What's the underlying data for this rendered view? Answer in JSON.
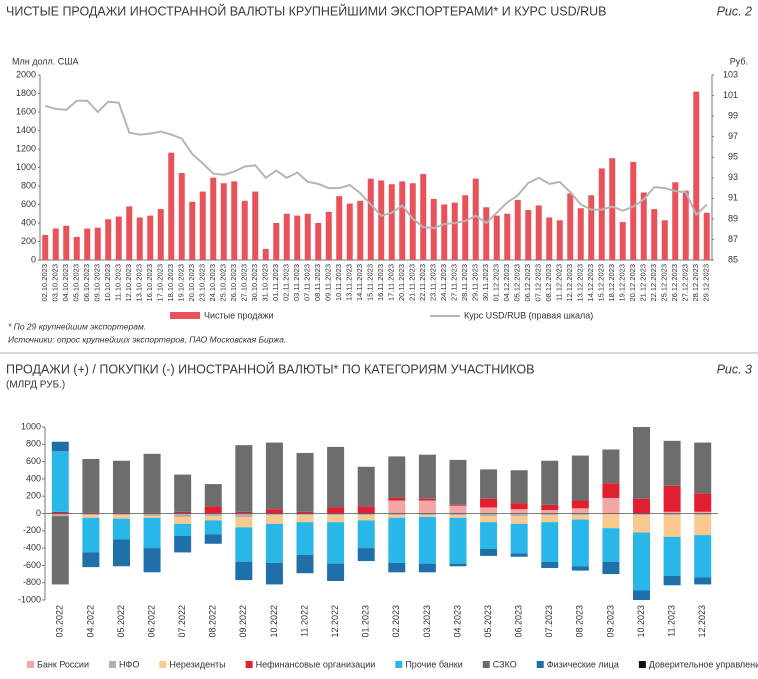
{
  "chart_data": [
    {
      "type": "bar_line",
      "title": "ЧИСТЫЕ ПРОДАЖИ ИНОСТРАННОЙ ВАЛЮТЫ КРУПНЕЙШИМИ ЭКСПОРТЕРАМИ* И КУРС USD/RUB",
      "figure_label": "Рис. 2",
      "y_label": "Млн долл. США",
      "y2_label": "Руб.",
      "notes": [
        "* По 29 крупнейшим экспортерам.",
        "Источники: опрос крупнейших экспортеров, ПАО Московская Биржа."
      ],
      "categories": [
        "02.10.2023",
        "03.10.2023",
        "04.10.2023",
        "05.10.2023",
        "06.10.2023",
        "09.10.2023",
        "10.10.2023",
        "11.10.2023",
        "12.10.2023",
        "13.10.2023",
        "16.10.2023",
        "17.10.2023",
        "18.10.2023",
        "19.10.2023",
        "20.10.2023",
        "23.10.2023",
        "24.10.2023",
        "25.10.2023",
        "26.10.2023",
        "27.10.2023",
        "30.10.2023",
        "31.10.2023",
        "01.11.2023",
        "02.11.2023",
        "03.11.2023",
        "07.11.2023",
        "08.11.2023",
        "09.11.2023",
        "10.11.2023",
        "13.11.2023",
        "14.11.2023",
        "15.11.2023",
        "16.11.2023",
        "17.11.2023",
        "20.11.2023",
        "21.11.2023",
        "22.11.2023",
        "23.11.2023",
        "24.11.2023",
        "27.11.2023",
        "28.11.2023",
        "29.11.2023",
        "30.11.2023",
        "01.12.2023",
        "04.12.2023",
        "05.12.2023",
        "06.12.2023",
        "07.12.2023",
        "08.12.2023",
        "11.12.2023",
        "12.12.2023",
        "13.12.2023",
        "14.12.2023",
        "15.12.2023",
        "18.12.2023",
        "19.12.2023",
        "20.12.2023",
        "21.12.2023",
        "22.12.2023",
        "25.12.2023",
        "26.12.2023",
        "27.12.2023",
        "28.12.2023",
        "29.12.2023"
      ],
      "series": [
        {
          "name": "Чистые продажи",
          "type": "bar",
          "color": "#e8535b",
          "values": [
            270,
            340,
            370,
            250,
            340,
            350,
            440,
            470,
            580,
            460,
            480,
            550,
            1160,
            940,
            630,
            740,
            890,
            830,
            850,
            640,
            740,
            120,
            400,
            500,
            480,
            500,
            400,
            520,
            690,
            610,
            640,
            880,
            860,
            820,
            850,
            830,
            930,
            660,
            600,
            620,
            700,
            880,
            570,
            480,
            500,
            650,
            540,
            590,
            460,
            430,
            720,
            560,
            700,
            990,
            1100,
            410,
            1060,
            730,
            550,
            430,
            840,
            750,
            1820,
            510
          ]
        },
        {
          "name": "Курс USD/RUB (правая шкала)",
          "type": "line",
          "axis": "y2",
          "color": "#b5b5b5",
          "values": [
            100.0,
            99.7,
            99.6,
            100.5,
            100.5,
            99.4,
            100.4,
            100.3,
            97.4,
            97.2,
            97.3,
            97.5,
            97.2,
            96.8,
            95.3,
            94.4,
            93.4,
            93.3,
            93.6,
            94.1,
            94.2,
            93.0,
            93.7,
            93.0,
            93.5,
            92.6,
            92.4,
            92.0,
            92.0,
            92.3,
            91.5,
            90.4,
            89.3,
            89.6,
            90.3,
            89.0,
            88.2,
            88.1,
            88.5,
            88.6,
            88.8,
            89.3,
            88.6,
            89.6,
            90.6,
            91.3,
            92.5,
            93.0,
            92.4,
            92.6,
            91.6,
            90.4,
            89.9,
            89.9,
            90.2,
            89.8,
            90.2,
            90.9,
            92.1,
            92.0,
            91.7,
            91.6,
            89.4,
            90.4
          ]
        }
      ],
      "ylim": [
        0,
        2000
      ],
      "yticks": [
        0,
        200,
        400,
        600,
        800,
        1000,
        1200,
        1400,
        1600,
        1800,
        2000
      ],
      "y2lim": [
        85,
        103
      ],
      "y2ticks": [
        85,
        87,
        89,
        91,
        93,
        95,
        97,
        99,
        101,
        103
      ]
    },
    {
      "type": "stacked_bar",
      "title": "ПРОДАЖИ (+) / ПОКУПКИ (-) ИНОСТРАННОЙ ВАЛЮТЫ* ПО КАТЕГОРИЯМ УЧАСТНИКОВ",
      "subtitle": "(МЛРД РУБ.)",
      "figure_label": "Рис. 3",
      "categories": [
        "03.2022",
        "04.2022",
        "05.2022",
        "06.2022",
        "07.2022",
        "08.2022",
        "09.2022",
        "10.2022",
        "11.2022",
        "12.2022",
        "01.2023",
        "02.2023",
        "03.2023",
        "04.2023",
        "05.2023",
        "06.2023",
        "07.2023",
        "08.2023",
        "09.2023",
        "10.2023",
        "11.2023",
        "12.2023"
      ],
      "series": [
        {
          "name": "Банк России",
          "color": "#f4a6a6",
          "values": [
            0,
            0,
            0,
            0,
            0,
            0,
            0,
            0,
            0,
            0,
            0,
            150,
            150,
            90,
            70,
            50,
            40,
            60,
            180,
            0,
            20,
            20
          ]
        },
        {
          "name": "НФО",
          "color": "#b0b0b0",
          "values": [
            -30,
            -20,
            -20,
            -30,
            -40,
            -30,
            -40,
            -20,
            -20,
            -20,
            -20,
            -20,
            -20,
            -20,
            -30,
            -30,
            -20,
            -20,
            -10,
            -20,
            -20,
            -20
          ]
        },
        {
          "name": "Нерезиденты",
          "color": "#f9c98f",
          "values": [
            0,
            -30,
            -40,
            -20,
            -80,
            -50,
            -120,
            -100,
            -80,
            -80,
            -60,
            -30,
            -20,
            -30,
            -70,
            -90,
            -80,
            -50,
            -160,
            -200,
            -250,
            -230
          ]
        },
        {
          "name": "Нефинансовые организации",
          "color": "#e31e2f",
          "values": [
            20,
            10,
            10,
            10,
            20,
            80,
            20,
            50,
            20,
            70,
            80,
            30,
            20,
            10,
            100,
            70,
            60,
            90,
            170,
            170,
            300,
            210
          ]
        },
        {
          "name": "Прочие банки",
          "color": "#29b6e8",
          "values": [
            700,
            -400,
            -240,
            -350,
            -140,
            -160,
            -400,
            -450,
            -380,
            -480,
            -320,
            -520,
            -540,
            -530,
            -310,
            -340,
            -460,
            -540,
            -390,
            -670,
            -450,
            -490
          ]
        },
        {
          "name": "СЗКО",
          "color": "#6d6d6d",
          "values": [
            -790,
            620,
            600,
            680,
            430,
            260,
            770,
            770,
            680,
            700,
            460,
            480,
            510,
            520,
            340,
            380,
            510,
            520,
            390,
            830,
            520,
            590
          ]
        },
        {
          "name": "Физические лица",
          "color": "#1f6fa8",
          "values": [
            110,
            -170,
            -310,
            -280,
            -190,
            -110,
            -210,
            -250,
            -210,
            -200,
            -150,
            -110,
            -100,
            -30,
            -80,
            -40,
            -70,
            -50,
            -140,
            -110,
            -110,
            -80
          ]
        },
        {
          "name": "Доверительное управление",
          "color": "#111111",
          "values": [
            0,
            0,
            0,
            0,
            0,
            0,
            0,
            0,
            0,
            0,
            0,
            0,
            0,
            0,
            0,
            0,
            0,
            0,
            0,
            0,
            0,
            0
          ]
        }
      ],
      "ylim": [
        -1000,
        1000
      ],
      "yticks": [
        -1000,
        -800,
        -600,
        -400,
        -200,
        0,
        200,
        400,
        600,
        800,
        1000
      ]
    }
  ]
}
